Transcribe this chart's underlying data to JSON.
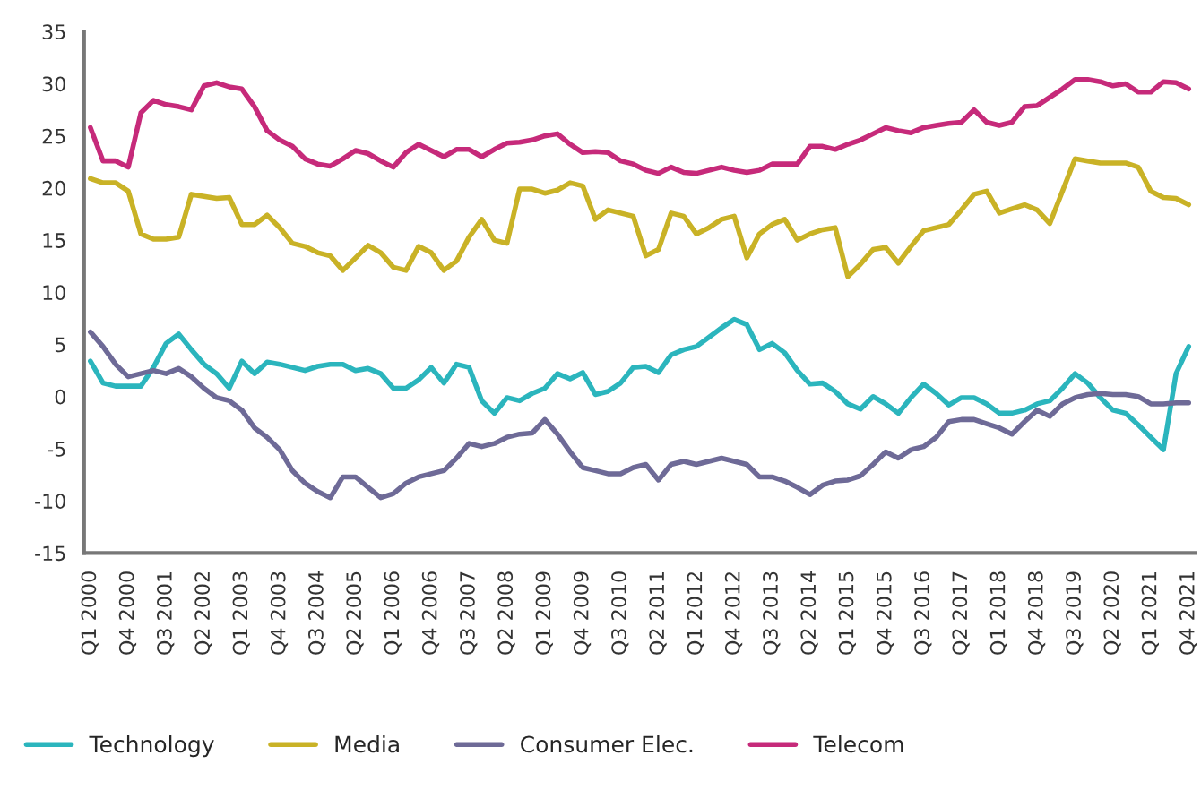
{
  "chart_data": {
    "type": "line",
    "categories": [
      "Q1 2000",
      null,
      null,
      "Q4 2000",
      null,
      null,
      "Q3 2001",
      null,
      null,
      "Q2 2002",
      null,
      null,
      "Q1 2003",
      null,
      null,
      "Q4 2003",
      null,
      null,
      "Q3 2004",
      null,
      null,
      "Q2 2005",
      null,
      null,
      "Q1 2006",
      null,
      null,
      "Q4 2006",
      null,
      null,
      "Q3 2007",
      null,
      null,
      "Q2 2008",
      null,
      null,
      "Q1 2009",
      null,
      null,
      "Q4 2009",
      null,
      null,
      "Q3 2010",
      null,
      null,
      "Q2 2011",
      null,
      null,
      "Q1 2012",
      null,
      null,
      "Q4 2012",
      null,
      null,
      "Q3 2013",
      null,
      null,
      "Q2 2014",
      null,
      null,
      "Q1 2015",
      null,
      null,
      "Q4 2015",
      null,
      null,
      "Q3 2016",
      null,
      null,
      "Q2 2017",
      null,
      null,
      "Q1 2018",
      null,
      null,
      "Q4 2018",
      null,
      null,
      "Q3 2019",
      null,
      null,
      "Q2 2020",
      null,
      null,
      "Q1 2021",
      null,
      null,
      "Q4 2021"
    ],
    "series": [
      {
        "name": "Technology",
        "color": "#2bb5bd",
        "values": [
          3.4,
          1.3,
          1,
          1,
          1,
          2.8,
          5.1,
          6,
          4.5,
          3.1,
          2.2,
          0.8,
          3.4,
          2.2,
          3.3,
          3.1,
          2.8,
          2.5,
          2.9,
          3.1,
          3.1,
          2.5,
          2.7,
          2.2,
          0.8,
          0.8,
          1.6,
          2.8,
          1.3,
          3.1,
          2.8,
          -0.4,
          -1.6,
          -0.1,
          -0.4,
          0.3,
          0.8,
          2.2,
          1.7,
          2.3,
          0.2,
          0.5,
          1.3,
          2.8,
          2.9,
          2.3,
          4,
          4.5,
          4.8,
          5.7,
          6.6,
          7.4,
          6.9,
          4.5,
          5.1,
          4.2,
          2.5,
          1.2,
          1.3,
          0.5,
          -0.7,
          -1.2,
          0,
          -0.7,
          -1.6,
          -0.1,
          1.2,
          0.3,
          -0.8,
          -0.1,
          -0.1,
          -0.7,
          -1.6,
          -1.6,
          -1.3,
          -0.7,
          -0.4,
          0.8,
          2.2,
          1.3,
          -0.1,
          -1.3,
          -1.6,
          -2.7,
          -3.9,
          -5.1,
          2.2,
          4.8
        ]
      },
      {
        "name": "Media",
        "color": "#c9b226",
        "values": [
          20.9,
          20.5,
          20.5,
          19.7,
          15.6,
          15.1,
          15.1,
          15.3,
          19.4,
          19.2,
          19,
          19.1,
          16.5,
          16.5,
          17.4,
          16.2,
          14.7,
          14.4,
          13.8,
          13.5,
          12.1,
          13.3,
          14.5,
          13.8,
          12.4,
          12.1,
          14.4,
          13.8,
          12.1,
          13,
          15.3,
          17,
          15,
          14.7,
          19.9,
          19.9,
          19.5,
          19.8,
          20.5,
          20.2,
          17,
          17.9,
          17.6,
          17.3,
          13.5,
          14.1,
          17.6,
          17.3,
          15.6,
          16.2,
          17,
          17.3,
          13.3,
          15.6,
          16.5,
          17,
          15,
          15.6,
          16,
          16.2,
          11.5,
          12.7,
          14.1,
          14.3,
          12.8,
          14.4,
          15.9,
          16.2,
          16.5,
          17.9,
          19.4,
          19.7,
          17.6,
          18,
          18.4,
          17.9,
          16.6,
          19.7,
          22.8,
          22.6,
          22.4,
          22.4,
          22.4,
          22,
          19.7,
          19.1,
          19,
          18.4
        ]
      },
      {
        "name": "Consumer Elec.",
        "color": "#6e6a97",
        "values": [
          6.2,
          4.8,
          3.1,
          1.9,
          2.2,
          2.5,
          2.2,
          2.7,
          1.9,
          0.8,
          -0.1,
          -0.4,
          -1.3,
          -3,
          -3.9,
          -5.1,
          -7.1,
          -8.3,
          -9.1,
          -9.7,
          -7.7,
          -7.7,
          -8.7,
          -9.7,
          -9.3,
          -8.3,
          -7.7,
          -7.4,
          -7.1,
          -5.9,
          -4.5,
          -4.8,
          -4.5,
          -3.9,
          -3.6,
          -3.5,
          -2.2,
          -3.6,
          -5.3,
          -6.8,
          -7.1,
          -7.4,
          -7.4,
          -6.8,
          -6.5,
          -8,
          -6.5,
          -6.2,
          -6.5,
          -6.2,
          -5.9,
          -6.2,
          -6.5,
          -7.7,
          -7.7,
          -8.1,
          -8.7,
          -9.4,
          -8.5,
          -8.1,
          -8,
          -7.6,
          -6.5,
          -5.3,
          -5.9,
          -5.1,
          -4.8,
          -3.9,
          -2.4,
          -2.2,
          -2.2,
          -2.6,
          -3,
          -3.6,
          -2.4,
          -1.3,
          -1.9,
          -0.7,
          -0.1,
          0.2,
          0.3,
          0.2,
          0.2,
          0,
          -0.7,
          -0.7,
          -0.6,
          -0.6
        ]
      },
      {
        "name": "Telecom",
        "color": "#c62a7a",
        "values": [
          25.8,
          22.6,
          22.6,
          22,
          27.2,
          28.4,
          28,
          27.8,
          27.5,
          29.8,
          30.1,
          29.7,
          29.5,
          27.8,
          25.5,
          24.6,
          24,
          22.8,
          22.3,
          22.1,
          22.8,
          23.6,
          23.3,
          22.6,
          22,
          23.4,
          24.2,
          23.6,
          23,
          23.7,
          23.7,
          23,
          23.7,
          24.3,
          24.4,
          24.6,
          25,
          25.2,
          24.2,
          23.4,
          23.5,
          23.4,
          22.6,
          22.3,
          21.7,
          21.4,
          22,
          21.5,
          21.4,
          21.7,
          22,
          21.7,
          21.5,
          21.7,
          22.3,
          22.3,
          22.3,
          24,
          24,
          23.7,
          24.2,
          24.6,
          25.2,
          25.8,
          25.5,
          25.3,
          25.8,
          26,
          26.2,
          26.3,
          27.5,
          26.3,
          26,
          26.3,
          27.8,
          27.9,
          28.7,
          29.5,
          30.4,
          30.4,
          30.2,
          29.8,
          30,
          29.2,
          29.2,
          30.2,
          30.1,
          29.5
        ]
      }
    ],
    "ylim": [
      -15,
      35
    ],
    "yticks": [
      -15,
      -10,
      -5,
      0,
      5,
      10,
      15,
      20,
      25,
      30,
      35
    ],
    "legend": "bottom left",
    "grid": false,
    "marker": "none",
    "line_style": "solid"
  }
}
